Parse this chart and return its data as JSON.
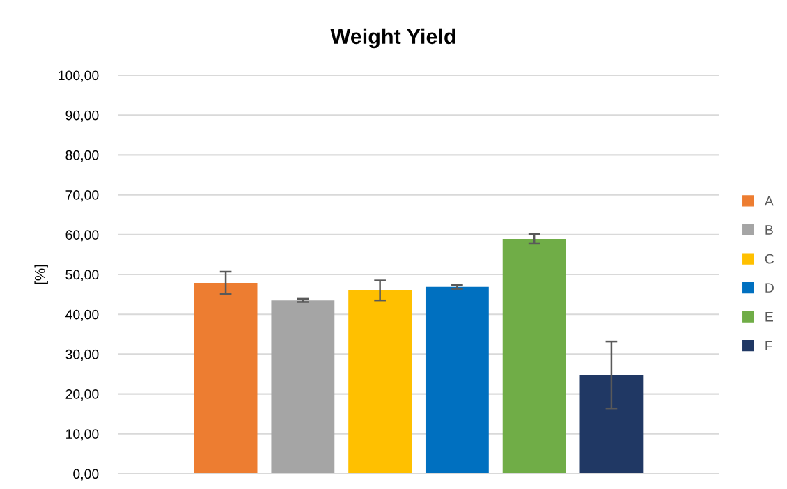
{
  "chart_data": {
    "type": "bar",
    "title": "Weight Yield",
    "ylabel": "[%]",
    "categories": [
      null
    ],
    "series": [
      {
        "name": "A",
        "color": "#ed7d31",
        "values": [
          47.9
        ],
        "errors": [
          2.8
        ]
      },
      {
        "name": "B",
        "color": "#a5a5a5",
        "values": [
          43.5
        ],
        "errors": [
          0.4
        ]
      },
      {
        "name": "C",
        "color": "#ffc000",
        "values": [
          46.0
        ],
        "errors": [
          2.5
        ]
      },
      {
        "name": "D",
        "color": "#0070c0",
        "values": [
          46.9
        ],
        "errors": [
          0.5
        ]
      },
      {
        "name": "E",
        "color": "#70ad47",
        "values": [
          58.9
        ],
        "errors": [
          1.2
        ]
      },
      {
        "name": "F",
        "color": "#203864",
        "values": [
          24.8
        ],
        "errors": [
          8.4
        ]
      }
    ],
    "ylim": [
      0,
      100
    ],
    "yticks": [
      {
        "value": 0,
        "label": "0,00"
      },
      {
        "value": 10,
        "label": "10,00"
      },
      {
        "value": 20,
        "label": "20,00"
      },
      {
        "value": 30,
        "label": "30,00"
      },
      {
        "value": 40,
        "label": "40,00"
      },
      {
        "value": 50,
        "label": "50,00"
      },
      {
        "value": 60,
        "label": "60,00"
      },
      {
        "value": 70,
        "label": "70,00"
      },
      {
        "value": 80,
        "label": "80,00"
      },
      {
        "value": 90,
        "label": "90,00"
      },
      {
        "value": 100,
        "label": "100,00"
      }
    ],
    "grid": "y",
    "legend": "right"
  }
}
